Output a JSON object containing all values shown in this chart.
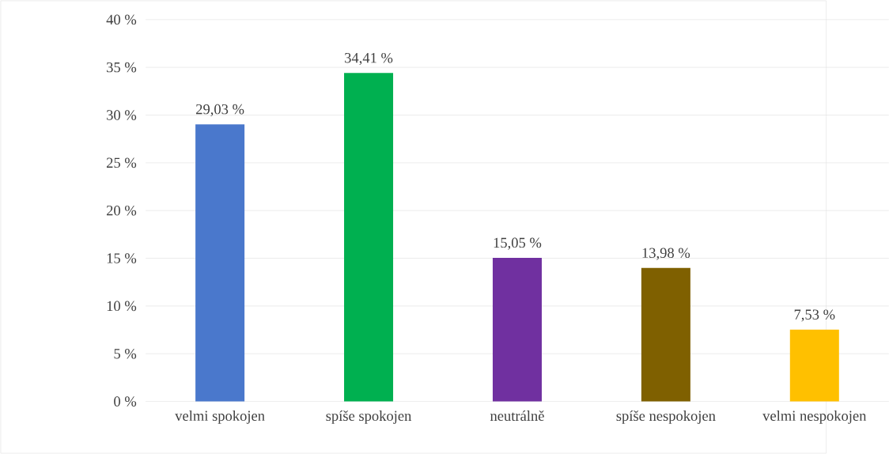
{
  "chart_data": {
    "type": "bar",
    "categories": [
      "velmi spokojen",
      "spíše spokojen",
      "neutrálně",
      "spíše nespokojen",
      "velmi nespokojen"
    ],
    "values": [
      29.03,
      34.41,
      15.05,
      13.98,
      7.53
    ],
    "value_labels": [
      "29,03 %",
      "34,41 %",
      "15,05 %",
      "13,98 %",
      "7,53 %"
    ],
    "colors": [
      "#4a78cc",
      "#00b050",
      "#7030a0",
      "#7f6000",
      "#ffc000"
    ],
    "ylim": [
      0,
      40
    ],
    "yticks": [
      {
        "value": 0,
        "label": "0 %"
      },
      {
        "value": 5,
        "label": "5 %"
      },
      {
        "value": 10,
        "label": "10 %"
      },
      {
        "value": 15,
        "label": "15 %"
      },
      {
        "value": 20,
        "label": "20 %"
      },
      {
        "value": 25,
        "label": "25 %"
      },
      {
        "value": 30,
        "label": "30 %"
      },
      {
        "value": 35,
        "label": "35 %"
      },
      {
        "value": 40,
        "label": "40 %"
      }
    ],
    "grid": "y"
  }
}
